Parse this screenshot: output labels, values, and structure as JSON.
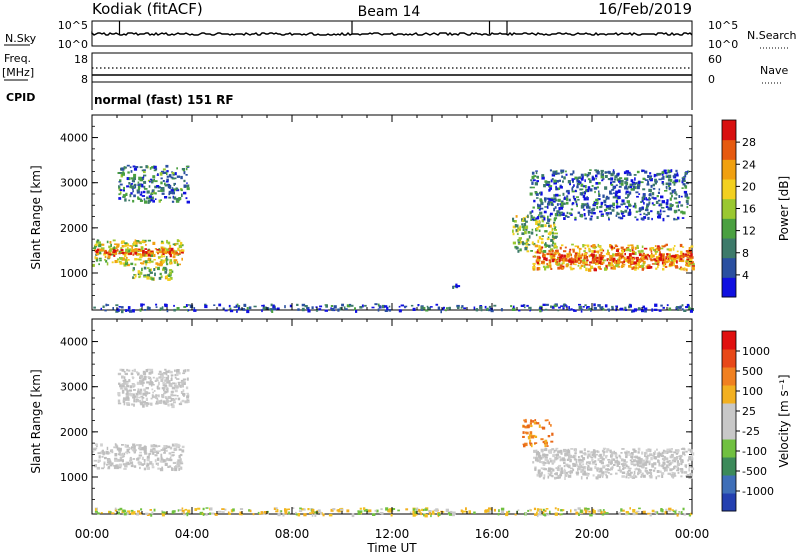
{
  "header": {
    "station": "Kodiak (fitACF)",
    "beam": "Beam 14",
    "date": "16/Feb/2019"
  },
  "aux_panels": {
    "nsky_label": "N.Sky",
    "nsky_ticks": [
      "10^5",
      "10^0"
    ],
    "nsearch_label": "N.Search",
    "nsearch_ticks": [
      "10^5",
      "10^0"
    ],
    "freq_label": "Freq.",
    "freq_unit": "[MHz]",
    "freq_ticks": [
      "18",
      "8"
    ],
    "nave_label": "Nave",
    "nave_ticks": [
      "60",
      "0"
    ],
    "cpid_label": "CPID",
    "cpid_value": "normal (fast) 151 RF"
  },
  "chart_data": [
    {
      "type": "heatmap",
      "name": "power",
      "ylabel": "Slant Range [km]",
      "yticks": [
        "4000",
        "3000",
        "2000",
        "1000"
      ],
      "ylim": [
        180,
        4500
      ],
      "xlim_hours": [
        0,
        24
      ],
      "colorbar": {
        "label": "Power [dB]",
        "ticks": [
          "28",
          "24",
          "20",
          "16",
          "12",
          "8",
          "4"
        ],
        "range": [
          0,
          32
        ],
        "colors": [
          "#1010e0",
          "#2a4fa0",
          "#3d7a6a",
          "#4aa040",
          "#9ac830",
          "#f2d020",
          "#f0a010",
          "#e65a10",
          "#d81010"
        ]
      },
      "echo_regions": [
        {
          "t0": 0.0,
          "t1": 3.6,
          "r0": 1200,
          "r1": 1750,
          "level": 0.55
        },
        {
          "t0": 0.0,
          "t1": 3.6,
          "r0": 1420,
          "r1": 1560,
          "level": 0.85
        },
        {
          "t0": 1.6,
          "t1": 3.2,
          "r0": 850,
          "r1": 1150,
          "level": 0.45
        },
        {
          "t0": 1.0,
          "t1": 3.8,
          "r0": 2600,
          "r1": 3400,
          "level": 0.25
        },
        {
          "t0": 17.6,
          "t1": 24.0,
          "r0": 1100,
          "r1": 1650,
          "level": 0.7
        },
        {
          "t0": 18.0,
          "t1": 24.0,
          "r0": 1250,
          "r1": 1450,
          "level": 0.85
        },
        {
          "t0": 16.8,
          "t1": 18.5,
          "r0": 1500,
          "r1": 2300,
          "level": 0.45
        },
        {
          "t0": 17.5,
          "t1": 23.8,
          "r0": 2200,
          "r1": 3300,
          "level": 0.2
        },
        {
          "t0": 0.0,
          "t1": 24.0,
          "r0": 180,
          "r1": 330,
          "level": 0.15
        },
        {
          "t0": 14.4,
          "t1": 14.6,
          "r0": 700,
          "r1": 770,
          "level": 0.2
        }
      ]
    },
    {
      "type": "heatmap",
      "name": "velocity",
      "ylabel": "Slant Range [km]",
      "yticks": [
        "4000",
        "3000",
        "2000",
        "1000"
      ],
      "ylim": [
        180,
        4500
      ],
      "xlim_hours": [
        0,
        24
      ],
      "xticks": [
        "00:00",
        "04:00",
        "08:00",
        "12:00",
        "16:00",
        "20:00",
        "00:00"
      ],
      "xlabel": "Time UT",
      "colorbar": {
        "label": "Velocity [m s⁻¹]",
        "ticks": [
          "1000",
          "500",
          "100",
          "25",
          "-25",
          "-100",
          "-500",
          "-1000"
        ],
        "colors": [
          "#2440b0",
          "#3f6fb8",
          "#3c8a5a",
          "#70c040",
          "#c8c8c8",
          "#c8c8c8",
          "#f2b020",
          "#f08020",
          "#e84818",
          "#e01010"
        ]
      },
      "echo_regions": [
        {
          "t0": 0.0,
          "t1": 3.6,
          "r0": 1200,
          "r1": 1750,
          "class": "gray"
        },
        {
          "t0": 17.6,
          "t1": 24.0,
          "r0": 1000,
          "r1": 1650,
          "class": "gray"
        },
        {
          "t0": 17.2,
          "t1": 18.4,
          "r0": 1700,
          "r1": 2300,
          "class": "orange"
        },
        {
          "t0": 0.0,
          "t1": 24.0,
          "r0": 180,
          "r1": 330,
          "class": "yellow"
        },
        {
          "t0": 1.0,
          "t1": 3.8,
          "r0": 2600,
          "r1": 3400,
          "class": "gray"
        }
      ]
    }
  ]
}
